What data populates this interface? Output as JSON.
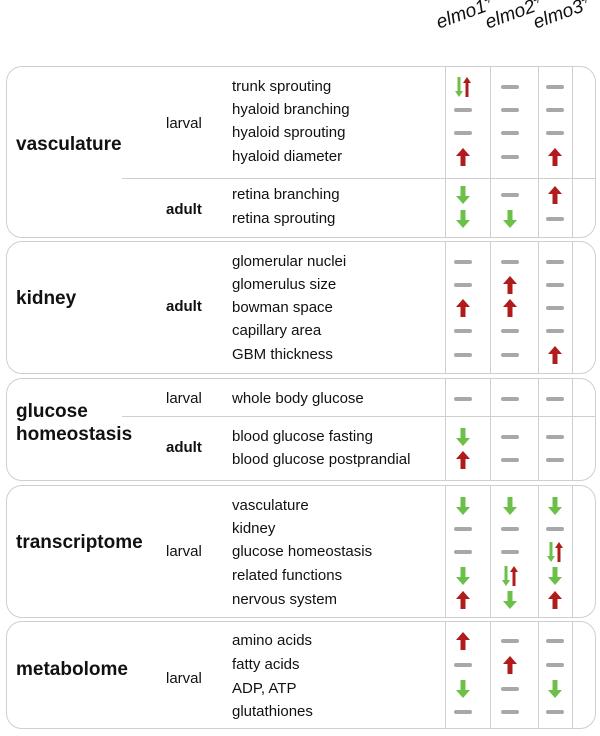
{
  "headers": [
    {
      "gene": "elmo1",
      "sup": "-/-"
    },
    {
      "gene": "elmo2",
      "sup": "-/-"
    },
    {
      "gene": "elmo3",
      "sup": "-/-"
    }
  ],
  "colors": {
    "up": "#b01c1c",
    "down": "#6cc04a",
    "none": "#a8a8a8",
    "border": "#cfcfcf"
  },
  "groups": [
    {
      "category": "vasculature",
      "stages": [
        {
          "stage": "larval",
          "bold": false,
          "items": [
            {
              "label": "trunk sprouting",
              "values": [
                "down-up",
                "none",
                "none"
              ]
            },
            {
              "label": "hyaloid branching",
              "values": [
                "none",
                "none",
                "none"
              ]
            },
            {
              "label": "hyaloid sprouting",
              "values": [
                "none",
                "none",
                "none"
              ]
            },
            {
              "label": "hyaloid diameter",
              "values": [
                "up",
                "none",
                "up"
              ]
            }
          ]
        },
        {
          "stage": "adult",
          "bold": true,
          "items": [
            {
              "label": "retina branching",
              "values": [
                "down",
                "none",
                "up"
              ]
            },
            {
              "label": "retina sprouting",
              "values": [
                "down",
                "down",
                "none"
              ]
            }
          ]
        }
      ]
    },
    {
      "category": "kidney",
      "stages": [
        {
          "stage": "adult",
          "bold": true,
          "items": [
            {
              "label": "glomerular nuclei",
              "values": [
                "none",
                "none",
                "none"
              ]
            },
            {
              "label": "glomerulus size",
              "values": [
                "none",
                "up",
                "none"
              ]
            },
            {
              "label": "bowman space",
              "values": [
                "up",
                "up",
                "none"
              ]
            },
            {
              "label": "capillary area",
              "values": [
                "none",
                "none",
                "none"
              ]
            },
            {
              "label": "GBM thickness",
              "values": [
                "none",
                "none",
                "up"
              ]
            }
          ]
        }
      ]
    },
    {
      "category": "glucose homeostasis",
      "stages": [
        {
          "stage": "larval",
          "bold": false,
          "items": [
            {
              "label": "whole body glucose",
              "values": [
                "none",
                "none",
                "none"
              ]
            }
          ]
        },
        {
          "stage": "adult",
          "bold": true,
          "items": [
            {
              "label": "blood glucose fasting",
              "values": [
                "down",
                "none",
                "none"
              ]
            },
            {
              "label": "blood glucose postprandial",
              "values": [
                "up",
                "none",
                "none"
              ]
            }
          ]
        }
      ]
    },
    {
      "category": "transcriptome",
      "stages": [
        {
          "stage": "larval",
          "bold": false,
          "items": [
            {
              "label": "vasculature",
              "values": [
                "down",
                "down",
                "down"
              ]
            },
            {
              "label": "kidney",
              "values": [
                "none",
                "none",
                "none"
              ]
            },
            {
              "label": "glucose homeostasis",
              "values": [
                "none",
                "none",
                "down-up"
              ]
            },
            {
              "label": "related functions",
              "values": [
                "down",
                "down-up",
                "down"
              ]
            },
            {
              "label": "nervous system",
              "values": [
                "up",
                "down",
                "up"
              ]
            }
          ]
        }
      ]
    },
    {
      "category": "metabolome",
      "stages": [
        {
          "stage": "larval",
          "bold": false,
          "items": [
            {
              "label": "amino acids",
              "values": [
                "up",
                "none",
                "none"
              ]
            },
            {
              "label": "fatty acids",
              "values": [
                "none",
                "up",
                "none"
              ]
            },
            {
              "label": "ADP, ATP",
              "values": [
                "down",
                "none",
                "down"
              ]
            },
            {
              "label": "glutathiones",
              "values": [
                "none",
                "none",
                "none"
              ]
            }
          ]
        }
      ]
    }
  ]
}
